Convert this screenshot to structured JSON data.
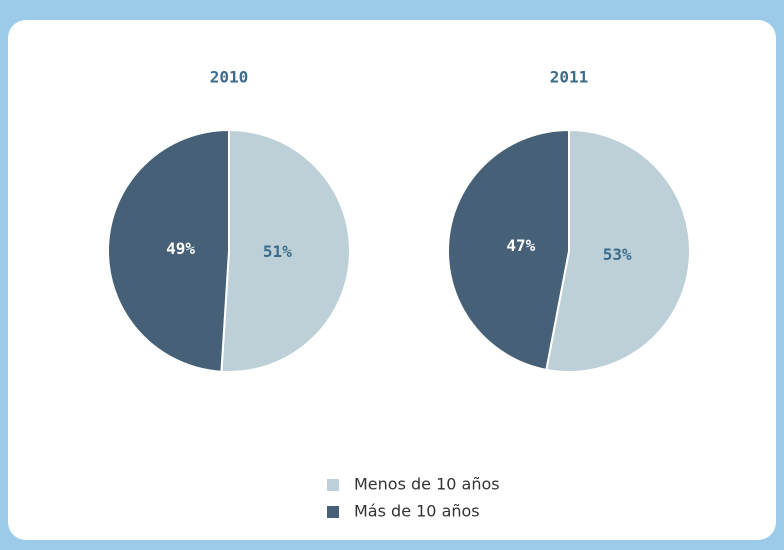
{
  "chart_data": [
    {
      "type": "pie",
      "title": "2010",
      "categories": [
        "Menos de 10 años",
        "Más de 10 años"
      ],
      "values": [
        51,
        49
      ],
      "value_labels": [
        "51%",
        "49%"
      ],
      "colors": [
        "#bdd0d8",
        "#466077"
      ],
      "label_colors": [
        "#3d6b8a",
        "#ffffff"
      ]
    },
    {
      "type": "pie",
      "title": "2011",
      "categories": [
        "Menos de 10 años",
        "Más de 10 años"
      ],
      "values": [
        53,
        47
      ],
      "value_labels": [
        "53%",
        "47%"
      ],
      "colors": [
        "#bdd0d8",
        "#466077"
      ],
      "label_colors": [
        "#3d6b8a",
        "#ffffff"
      ]
    }
  ]
}
